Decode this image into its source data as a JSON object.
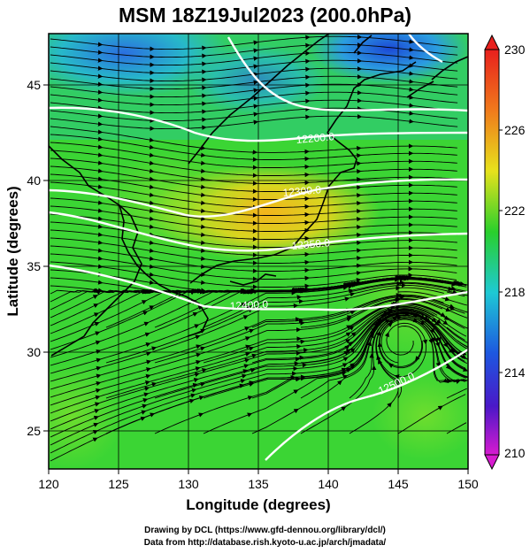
{
  "title": "MSM 18Z19Jul2023 (200.0hPa)",
  "xaxis": {
    "label": "Longitude (degrees)",
    "ticks": [
      "120",
      "125",
      "130",
      "135",
      "140",
      "145",
      "150"
    ]
  },
  "yaxis": {
    "label": "Latitude  (degrees)",
    "ticks": [
      "25",
      "30",
      "35",
      "40",
      "45"
    ]
  },
  "colorbar": {
    "ticks": [
      "230",
      "226",
      "222",
      "218",
      "214",
      "210"
    ]
  },
  "contours": [
    {
      "label": "12200.0"
    },
    {
      "label": "12300.0"
    },
    {
      "label": "12350.0"
    },
    {
      "label": "12400.0"
    },
    {
      "label": "12500.0"
    }
  ],
  "credits": {
    "line1": "Drawing by DCL (https://www.gfd-dennou.org/library/dcl/)",
    "line2": "Data from http://database.rish.kyoto-u.ac.jp/arch/jmadata/"
  },
  "colors": {
    "contour": "#ffffff",
    "streamline": "#000000",
    "field_green": "#3bd534",
    "field_warm": "#f0c41e",
    "field_cool": "#2f8be0"
  }
}
